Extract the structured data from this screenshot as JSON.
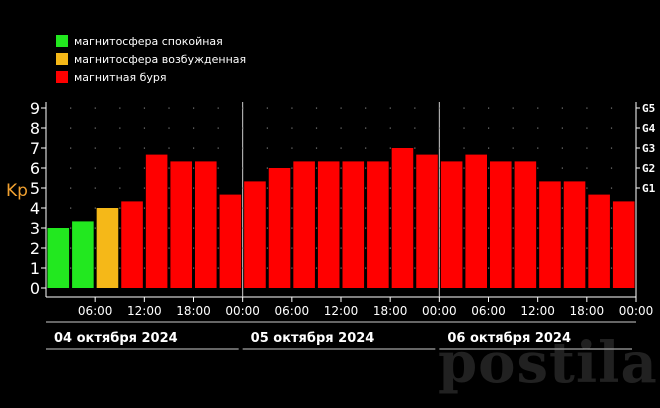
{
  "legend": [
    {
      "label": "магнитосфера спокойная",
      "color": "#22e81f"
    },
    {
      "label": "магнитосфера возбужденная",
      "color": "#f5b818"
    },
    {
      "label": "магнитная буря",
      "color": "#ff0000"
    }
  ],
  "watermark": "postila.ru",
  "chart_data": {
    "type": "bar",
    "ylabel": "Kp",
    "ylim": [
      0,
      9
    ],
    "yticks": [
      "0",
      "1",
      "2",
      "3",
      "4",
      "5",
      "6",
      "7",
      "8",
      "9"
    ],
    "storm_levels": [
      {
        "label": "G1",
        "kp": 5
      },
      {
        "label": "G2",
        "kp": 6
      },
      {
        "label": "G3",
        "kp": 7
      },
      {
        "label": "G4",
        "kp": 8
      },
      {
        "label": "G5",
        "kp": 9
      }
    ],
    "time_labels": [
      "06:00",
      "12:00",
      "18:00",
      "00:00",
      "06:00",
      "12:00",
      "18:00",
      "00:00",
      "06:00",
      "12:00",
      "18:00",
      "00:00"
    ],
    "days": [
      "04 октября 2024",
      "05 октября 2024",
      "06 октября 2024"
    ],
    "values": [
      3.0,
      3.33,
      4.0,
      4.33,
      6.67,
      6.33,
      6.33,
      4.67,
      5.33,
      6.0,
      6.33,
      6.33,
      6.33,
      6.33,
      7.0,
      6.67,
      6.33,
      6.67,
      6.33,
      6.33,
      5.33,
      5.33,
      4.67,
      4.33
    ],
    "colors": [
      "#22e81f",
      "#22e81f",
      "#f5b818",
      "#ff0000",
      "#ff0000",
      "#ff0000",
      "#ff0000",
      "#ff0000",
      "#ff0000",
      "#ff0000",
      "#ff0000",
      "#ff0000",
      "#ff0000",
      "#ff0000",
      "#ff0000",
      "#ff0000",
      "#ff0000",
      "#ff0000",
      "#ff0000",
      "#ff0000",
      "#ff0000",
      "#ff0000",
      "#ff0000",
      "#ff0000"
    ]
  }
}
